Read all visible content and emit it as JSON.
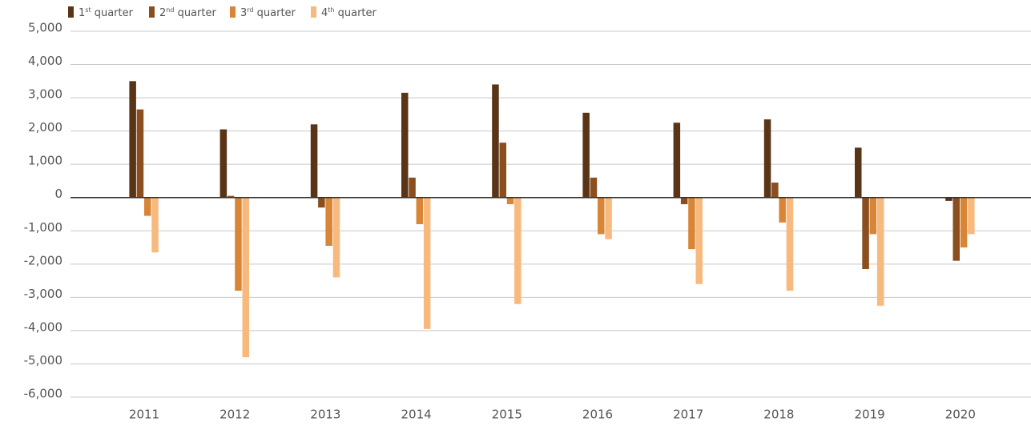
{
  "chart_data": {
    "type": "bar",
    "categories": [
      "2011",
      "2012",
      "2013",
      "2014",
      "2015",
      "2016",
      "2017",
      "2018",
      "2019",
      "2020"
    ],
    "series": [
      {
        "name": "1st quarter",
        "color": "#5a3416",
        "values": [
          3500,
          2050,
          2200,
          3150,
          3400,
          2550,
          2250,
          2350,
          1500,
          -100
        ]
      },
      {
        "name": "2nd quarter",
        "color": "#8b4e1e",
        "values": [
          2650,
          50,
          -300,
          600,
          1650,
          600,
          -200,
          450,
          -2150,
          -1900
        ]
      },
      {
        "name": "3rd quarter",
        "color": "#d98536",
        "values": [
          -550,
          -2800,
          -1450,
          -800,
          -200,
          -1100,
          -1550,
          -750,
          -1100,
          -1500
        ]
      },
      {
        "name": "4th quarter",
        "color": "#f7b97d",
        "values": [
          -1650,
          -4800,
          -2400,
          -3950,
          -3200,
          -1250,
          -2600,
          -2800,
          -3250,
          -1100
        ]
      }
    ],
    "ylim": [
      -6000,
      5000
    ],
    "yticks": [
      {
        "value": 5000,
        "label": "5,000"
      },
      {
        "value": 4000,
        "label": "4,000"
      },
      {
        "value": 3000,
        "label": "3,000"
      },
      {
        "value": 2000,
        "label": "2,000"
      },
      {
        "value": 1000,
        "label": "1,000"
      },
      0,
      {
        "value": -1000,
        "label": "-1,000"
      },
      {
        "value": -2000,
        "label": "-2,000"
      },
      {
        "value": -3000,
        "label": "-3,000"
      },
      {
        "value": -4000,
        "label": "-4,000"
      },
      {
        "value": -5000,
        "label": "-5,000"
      },
      {
        "value": -6000,
        "label": "-6,000"
      }
    ],
    "grid": true,
    "legend": "top-left"
  }
}
